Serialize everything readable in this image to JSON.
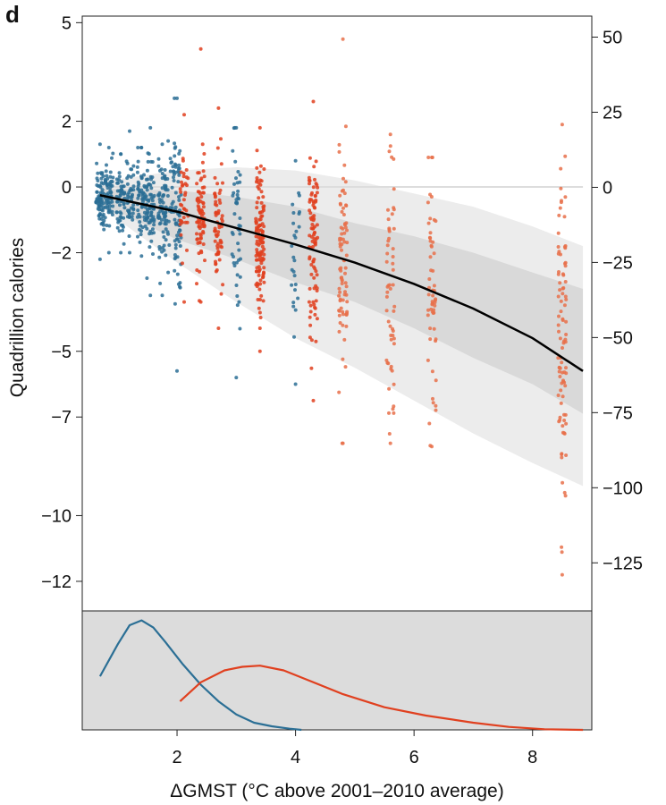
{
  "chart_data": {
    "panel_label": "d",
    "type": "scatter",
    "xlabel": "ΔGMST (°C above 2001–2010 average)",
    "ylabel": "Quadrillion calories",
    "xlim": [
      0.4,
      9.0
    ],
    "ylim": [
      -12.9,
      5.2
    ],
    "y2lim": [
      -141,
      57
    ],
    "xticks": [
      2,
      4,
      6,
      8
    ],
    "xtick_labels": [
      "2",
      "4",
      "6",
      "8"
    ],
    "yticks": [
      5,
      2,
      0,
      -2,
      -5,
      -7,
      -10,
      -12
    ],
    "ytick_labels": [
      "5",
      "2",
      "0",
      "−2",
      "−5",
      "−7",
      "−10",
      "−12"
    ],
    "y2ticks": [
      50,
      25,
      0,
      -25,
      -50,
      -75,
      -100,
      -125
    ],
    "y2tick_labels": [
      "50",
      "25",
      "0",
      "−25",
      "−50",
      "−75",
      "−100",
      "−125"
    ],
    "colors": {
      "blue": "#2b6f95",
      "red": "#e0401f",
      "orange": "#e8704a",
      "band_outer": "#ececec",
      "band_inner": "#d9d9d9",
      "density_panel": "#dcdcdc"
    },
    "scatter_columns": [
      {
        "x": 0.7,
        "mean": -0.3,
        "sd": 0.5,
        "min": -2.2,
        "max": 1.3,
        "n": 70,
        "color": "blue"
      },
      {
        "x": 0.85,
        "mean": -0.3,
        "sd": 0.5,
        "min": -2.0,
        "max": 1.2,
        "n": 60,
        "color": "blue"
      },
      {
        "x": 1.05,
        "mean": -0.4,
        "sd": 0.55,
        "min": -2.0,
        "max": 1.0,
        "n": 55,
        "color": "blue"
      },
      {
        "x": 1.2,
        "mean": -0.3,
        "sd": 0.55,
        "min": -2.0,
        "max": 1.7,
        "n": 45,
        "color": "blue"
      },
      {
        "x": 1.4,
        "mean": -0.35,
        "sd": 0.55,
        "min": -2.1,
        "max": 1.2,
        "n": 55,
        "color": "blue"
      },
      {
        "x": 1.55,
        "mean": -0.4,
        "sd": 0.7,
        "min": -3.3,
        "max": 1.8,
        "n": 70,
        "color": "blue"
      },
      {
        "x": 1.75,
        "mean": -0.6,
        "sd": 0.7,
        "min": -3.3,
        "max": 1.3,
        "n": 60,
        "color": "blue"
      },
      {
        "x": 1.85,
        "mean": -0.5,
        "sd": 0.7,
        "min": -2.6,
        "max": 1.4,
        "n": 30,
        "color": "blue"
      },
      {
        "x": 2.0,
        "mean": -0.9,
        "sd": 1.3,
        "min": -5.6,
        "max": 2.7,
        "n": 70,
        "color": "blue"
      },
      {
        "x": 2.12,
        "mean": -0.6,
        "sd": 0.9,
        "min": -3.5,
        "max": 2.2,
        "n": 35,
        "color": "red"
      },
      {
        "x": 2.4,
        "mean": -0.9,
        "sd": 0.9,
        "min": -3.5,
        "max": 4.2,
        "n": 75,
        "color": "red"
      },
      {
        "x": 2.7,
        "mean": -1.2,
        "sd": 1.0,
        "min": -4.3,
        "max": 2.4,
        "n": 60,
        "color": "red"
      },
      {
        "x": 3.0,
        "mean": -1.3,
        "sd": 1.3,
        "min": -5.8,
        "max": 1.8,
        "n": 45,
        "color": "blue"
      },
      {
        "x": 3.4,
        "mean": -1.8,
        "sd": 1.2,
        "min": -5.0,
        "max": 1.8,
        "n": 120,
        "color": "red"
      },
      {
        "x": 4.0,
        "mean": -1.8,
        "sd": 1.3,
        "min": -6.0,
        "max": 0.8,
        "n": 25,
        "color": "blue"
      },
      {
        "x": 4.3,
        "mean": -1.8,
        "sd": 1.5,
        "min": -6.5,
        "max": 2.6,
        "n": 90,
        "color": "red"
      },
      {
        "x": 4.8,
        "mean": -2.6,
        "sd": 1.9,
        "min": -7.8,
        "max": 4.5,
        "n": 80,
        "color": "orange"
      },
      {
        "x": 5.6,
        "mean": -2.8,
        "sd": 2.1,
        "min": -7.8,
        "max": 1.6,
        "n": 55,
        "color": "orange"
      },
      {
        "x": 6.3,
        "mean": -3.2,
        "sd": 2.1,
        "min": -7.9,
        "max": 0.9,
        "n": 55,
        "color": "orange"
      },
      {
        "x": 8.5,
        "mean": -4.8,
        "sd": 2.6,
        "min": -11.8,
        "max": 1.9,
        "n": 90,
        "color": "orange"
      }
    ],
    "fit_line": {
      "x": [
        0.7,
        2,
        3,
        4,
        5,
        6,
        7,
        8,
        8.85
      ],
      "y": [
        -0.25,
        -0.75,
        -1.25,
        -1.75,
        -2.3,
        -2.95,
        -3.7,
        -4.6,
        -5.6
      ],
      "color": "#000000"
    },
    "reference_line": {
      "y": 0
    },
    "band_inner": {
      "x": [
        0.7,
        2,
        3,
        4,
        5,
        6,
        7,
        8,
        8.85
      ],
      "upper": [
        -0.05,
        -0.1,
        -0.3,
        -0.6,
        -1.1,
        -1.5,
        -2.0,
        -2.6,
        -3.1
      ],
      "lower": [
        -0.5,
        -1.6,
        -2.2,
        -2.9,
        -3.5,
        -4.3,
        -5.2,
        -6.0,
        -6.9
      ]
    },
    "band_outer": {
      "x": [
        0.7,
        2,
        3,
        4,
        5,
        6,
        7,
        8,
        8.85
      ],
      "upper": [
        0.15,
        0.5,
        0.6,
        0.5,
        0.2,
        -0.2,
        -0.6,
        -1.2,
        -1.8
      ],
      "lower": [
        -0.6,
        -2.3,
        -3.5,
        -4.6,
        -5.5,
        -6.5,
        -7.5,
        -8.4,
        -9.1
      ]
    },
    "density": [
      {
        "color": "blue",
        "x": [
          0.7,
          1.0,
          1.2,
          1.4,
          1.6,
          1.8,
          2.1,
          2.4,
          2.7,
          3.0,
          3.3,
          3.6,
          3.9,
          4.1
        ],
        "y": [
          0.45,
          0.72,
          0.88,
          0.92,
          0.86,
          0.74,
          0.55,
          0.38,
          0.24,
          0.13,
          0.06,
          0.03,
          0.01,
          0.0
        ]
      },
      {
        "color": "red",
        "x": [
          2.05,
          2.4,
          2.8,
          3.1,
          3.4,
          3.8,
          4.2,
          4.8,
          5.5,
          6.2,
          7.0,
          7.6,
          8.2,
          8.85
        ],
        "y": [
          0.24,
          0.4,
          0.5,
          0.53,
          0.54,
          0.5,
          0.42,
          0.3,
          0.19,
          0.12,
          0.06,
          0.025,
          0.005,
          0.0
        ]
      }
    ]
  }
}
